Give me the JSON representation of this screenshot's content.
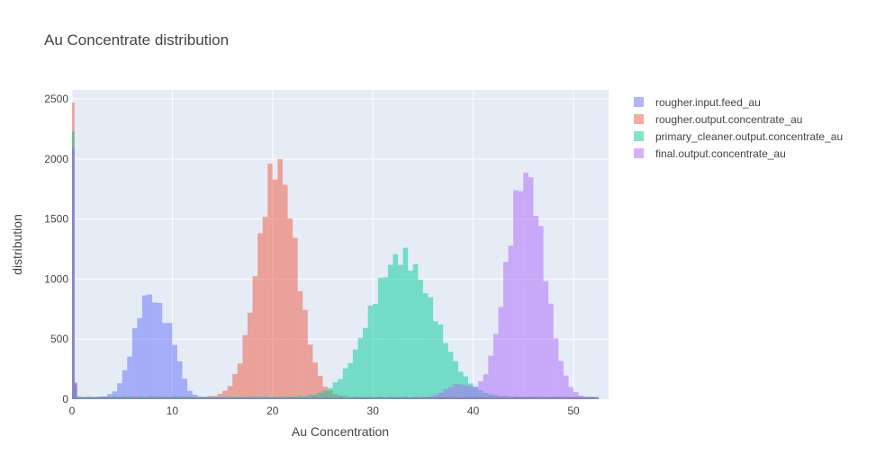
{
  "chart_data": {
    "type": "bar",
    "title": "Au Concentrate distribution",
    "xlabel": "Au Concentration",
    "ylabel": "distribution",
    "xlim": [
      0,
      53.5
    ],
    "ylim": [
      0,
      2575
    ],
    "x_ticks": [
      0,
      10,
      20,
      30,
      40,
      50
    ],
    "y_ticks": [
      0,
      500,
      1000,
      1500,
      2000,
      2500
    ],
    "bin_width": 0.5,
    "legend_position": "top-right",
    "grid": true,
    "series": [
      {
        "name": "rougher.input.feed_au",
        "color": "#636efa",
        "peaks": [
          {
            "x": 0.0,
            "y": 2080
          },
          {
            "x": 0.25,
            "y": 140
          }
        ],
        "components": [
          {
            "center": 7.6,
            "sigma": 1.45,
            "amp": 820
          },
          {
            "center": 10.0,
            "sigma": 0.9,
            "amp": 300
          }
        ],
        "floor": 18
      },
      {
        "name": "rougher.output.concentrate_au",
        "color": "#ef553b",
        "peaks": [
          {
            "x": 0.0,
            "y": 2470
          },
          {
            "x": 0.25,
            "y": 130
          }
        ],
        "components": [
          {
            "center": 20.5,
            "sigma": 1.95,
            "amp": 1890
          }
        ],
        "floor": 22
      },
      {
        "name": "primary_cleaner.output.concentrate_au",
        "color": "#00cc96",
        "peaks": [
          {
            "x": 0.0,
            "y": 2230
          },
          {
            "x": 0.25,
            "y": 100
          }
        ],
        "components": [
          {
            "center": 33.0,
            "sigma": 3.1,
            "amp": 1200
          }
        ],
        "floor": 22
      },
      {
        "name": "final.output.concentrate_au",
        "color": "#ab63fa",
        "peaks": [
          {
            "x": 0.0,
            "y": 2100
          },
          {
            "x": 0.25,
            "y": 130
          }
        ],
        "components": [
          {
            "center": 45.2,
            "sigma": 1.85,
            "amp": 1930
          },
          {
            "center": 38.5,
            "sigma": 1.3,
            "amp": 110
          }
        ],
        "floor": 10
      }
    ]
  }
}
